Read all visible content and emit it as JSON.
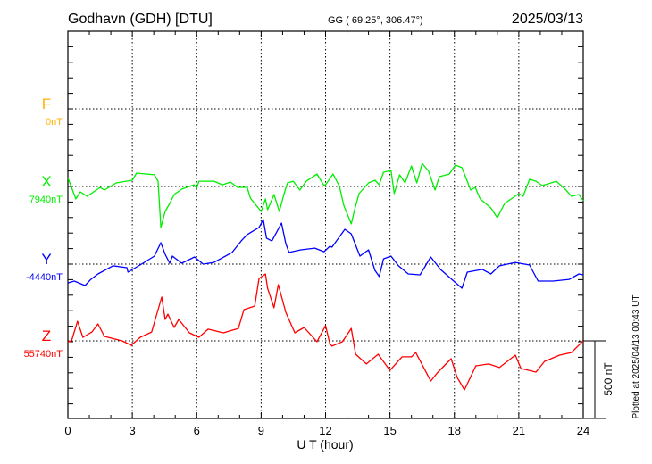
{
  "header": {
    "station": "Godhavn (GDH)  [DTU]",
    "coords": "GG ( 69.25°, 306.47°)",
    "date": "2025/03/13"
  },
  "footer": {
    "plotted": "Plotted at 2025/04/13 00:43 UT",
    "scale_label": "500 nT"
  },
  "chart_data": {
    "type": "line",
    "title": "Godhavn (GDH)  [DTU]",
    "xlabel": "U T (hour)",
    "xlim": [
      0,
      24
    ],
    "xticks": [
      "0",
      "3",
      "6",
      "9",
      "12",
      "15",
      "18",
      "21",
      "24"
    ],
    "grid": true,
    "scale_nT_per_division": 500,
    "series": [
      {
        "name": "F",
        "baseline_label": "0nT",
        "color": "#ffb000",
        "points": []
      },
      {
        "name": "X",
        "baseline_label": "7940nT",
        "color": "#00ee00",
        "points": [
          [
            0,
            57
          ],
          [
            0.37,
            -80
          ],
          [
            0.58,
            -35
          ],
          [
            0.9,
            -63
          ],
          [
            1.5,
            -6
          ],
          [
            1.7,
            -23
          ],
          [
            2.25,
            23
          ],
          [
            3.0,
            40
          ],
          [
            3.2,
            86
          ],
          [
            4.03,
            75
          ],
          [
            4.2,
            34
          ],
          [
            4.33,
            -264
          ],
          [
            4.53,
            -161
          ],
          [
            4.74,
            -109
          ],
          [
            4.95,
            -52
          ],
          [
            5.3,
            -17
          ],
          [
            5.87,
            11
          ],
          [
            6.0,
            -11
          ],
          [
            6.1,
            34
          ],
          [
            6.8,
            34
          ],
          [
            7.2,
            11
          ],
          [
            7.57,
            29
          ],
          [
            7.9,
            -6
          ],
          [
            8.35,
            -6
          ],
          [
            8.5,
            -75
          ],
          [
            9.0,
            -161
          ],
          [
            9.2,
            -80
          ],
          [
            9.3,
            -150
          ],
          [
            9.6,
            -52
          ],
          [
            9.85,
            -161
          ],
          [
            10.07,
            -46
          ],
          [
            10.23,
            23
          ],
          [
            10.5,
            34
          ],
          [
            10.8,
            -23
          ],
          [
            11.1,
            34
          ],
          [
            11.6,
            80
          ],
          [
            11.93,
            6
          ],
          [
            12.0,
            11
          ],
          [
            12.35,
            80
          ],
          [
            12.65,
            0
          ],
          [
            12.85,
            -121
          ],
          [
            13.2,
            -241
          ],
          [
            13.35,
            -150
          ],
          [
            13.56,
            -46
          ],
          [
            14.0,
            23
          ],
          [
            14.3,
            40
          ],
          [
            14.5,
            11
          ],
          [
            14.7,
            92
          ],
          [
            15.05,
            103
          ],
          [
            15.2,
            -46
          ],
          [
            15.45,
            75
          ],
          [
            15.7,
            23
          ],
          [
            16.0,
            132
          ],
          [
            16.25,
            23
          ],
          [
            16.5,
            149
          ],
          [
            16.8,
            98
          ],
          [
            17.1,
            -23
          ],
          [
            17.3,
            63
          ],
          [
            17.76,
            80
          ],
          [
            18.05,
            138
          ],
          [
            18.35,
            121
          ],
          [
            18.76,
            -23
          ],
          [
            18.97,
            -6
          ],
          [
            19.2,
            -80
          ],
          [
            19.7,
            -138
          ],
          [
            20.0,
            -201
          ],
          [
            20.34,
            -109
          ],
          [
            21.0,
            -46
          ],
          [
            21.2,
            -63
          ],
          [
            21.5,
            46
          ],
          [
            21.8,
            34
          ],
          [
            22.1,
            6
          ],
          [
            22.75,
            34
          ],
          [
            23.2,
            -23
          ],
          [
            23.45,
            -63
          ],
          [
            23.8,
            -52
          ],
          [
            24,
            -92
          ]
        ]
      },
      {
        "name": "Y",
        "baseline_label": "-4440nT",
        "color": "#0000ff",
        "points": [
          [
            0,
            -121
          ],
          [
            0.3,
            -109
          ],
          [
            0.8,
            -138
          ],
          [
            1.07,
            -98
          ],
          [
            1.4,
            -63
          ],
          [
            2.1,
            -11
          ],
          [
            2.75,
            -23
          ],
          [
            2.8,
            -52
          ],
          [
            3.5,
            6
          ],
          [
            4.03,
            52
          ],
          [
            4.33,
            138
          ],
          [
            4.53,
            63
          ],
          [
            4.74,
            6
          ],
          [
            4.87,
            52
          ],
          [
            5.3,
            6
          ],
          [
            5.9,
            46
          ],
          [
            6.3,
            0
          ],
          [
            6.8,
            11
          ],
          [
            7.65,
            75
          ],
          [
            8.07,
            149
          ],
          [
            8.35,
            190
          ],
          [
            8.9,
            236
          ],
          [
            9.1,
            287
          ],
          [
            9.25,
            167
          ],
          [
            9.5,
            149
          ],
          [
            9.95,
            264
          ],
          [
            10.15,
            132
          ],
          [
            10.3,
            75
          ],
          [
            10.85,
            92
          ],
          [
            11.5,
            103
          ],
          [
            11.93,
            80
          ],
          [
            12.2,
            115
          ],
          [
            12.3,
            109
          ],
          [
            12.9,
            224
          ],
          [
            13.2,
            195
          ],
          [
            13.6,
            52
          ],
          [
            14.0,
            92
          ],
          [
            14.3,
            -40
          ],
          [
            14.5,
            -80
          ],
          [
            14.7,
            34
          ],
          [
            15.05,
            52
          ],
          [
            15.4,
            -11
          ],
          [
            15.85,
            -63
          ],
          [
            16.4,
            -69
          ],
          [
            16.9,
            46
          ],
          [
            17.35,
            -34
          ],
          [
            17.97,
            -109
          ],
          [
            18.35,
            -155
          ],
          [
            18.6,
            -52
          ],
          [
            19.3,
            -34
          ],
          [
            19.7,
            -63
          ],
          [
            20.1,
            -11
          ],
          [
            20.84,
            11
          ],
          [
            21.5,
            -6
          ],
          [
            21.9,
            -109
          ],
          [
            22.6,
            -109
          ],
          [
            23.35,
            -98
          ],
          [
            23.8,
            -63
          ],
          [
            24,
            -69
          ]
        ]
      },
      {
        "name": "Z",
        "baseline_label": "55740nT",
        "color": "#ff0000",
        "points": [
          [
            0,
            -6
          ],
          [
            0.17,
            0
          ],
          [
            0.45,
            126
          ],
          [
            0.7,
            23
          ],
          [
            1.12,
            57
          ],
          [
            1.4,
            109
          ],
          [
            1.7,
            29
          ],
          [
            2.53,
            0
          ],
          [
            2.95,
            -29
          ],
          [
            3.37,
            23
          ],
          [
            3.9,
            57
          ],
          [
            4.2,
            201
          ],
          [
            4.37,
            282
          ],
          [
            4.53,
            138
          ],
          [
            4.66,
            172
          ],
          [
            4.95,
            86
          ],
          [
            5.16,
            138
          ],
          [
            5.66,
            52
          ],
          [
            6.1,
            23
          ],
          [
            6.53,
            75
          ],
          [
            7.24,
            52
          ],
          [
            7.94,
            80
          ],
          [
            8.2,
            201
          ],
          [
            8.7,
            224
          ],
          [
            8.9,
            402
          ],
          [
            9.2,
            431
          ],
          [
            9.3,
            339
          ],
          [
            9.6,
            213
          ],
          [
            9.8,
            362
          ],
          [
            10.15,
            184
          ],
          [
            10.57,
            52
          ],
          [
            11.0,
            86
          ],
          [
            11.6,
            -6
          ],
          [
            12.0,
            98
          ],
          [
            12.2,
            -17
          ],
          [
            12.3,
            -34
          ],
          [
            12.78,
            -6
          ],
          [
            13.2,
            80
          ],
          [
            13.4,
            -86
          ],
          [
            13.9,
            -149
          ],
          [
            14.45,
            -86
          ],
          [
            15.0,
            -190
          ],
          [
            15.56,
            -103
          ],
          [
            16.0,
            -103
          ],
          [
            16.2,
            -75
          ],
          [
            16.9,
            -259
          ],
          [
            17.2,
            -207
          ],
          [
            17.85,
            -115
          ],
          [
            18.13,
            -236
          ],
          [
            18.47,
            -316
          ],
          [
            19.0,
            -161
          ],
          [
            19.6,
            -149
          ],
          [
            20.1,
            -172
          ],
          [
            20.84,
            -92
          ],
          [
            21.1,
            -178
          ],
          [
            21.8,
            -201
          ],
          [
            22.2,
            -132
          ],
          [
            22.9,
            -92
          ],
          [
            23.45,
            -75
          ],
          [
            24,
            0
          ]
        ]
      }
    ]
  }
}
